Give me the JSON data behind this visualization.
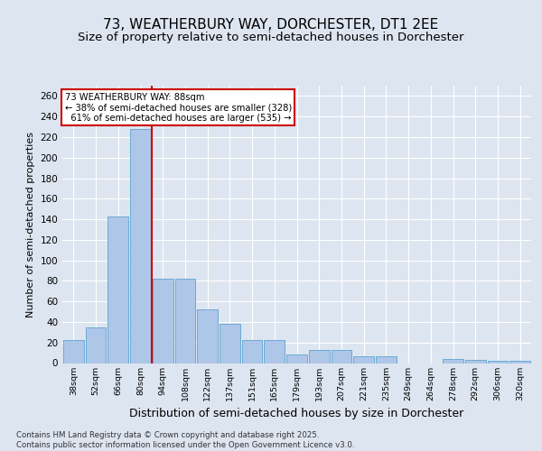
{
  "title": "73, WEATHERBURY WAY, DORCHESTER, DT1 2EE",
  "subtitle": "Size of property relative to semi-detached houses in Dorchester",
  "xlabel": "Distribution of semi-detached houses by size in Dorchester",
  "ylabel": "Number of semi-detached properties",
  "categories": [
    "38sqm",
    "52sqm",
    "66sqm",
    "80sqm",
    "94sqm",
    "108sqm",
    "122sqm",
    "137sqm",
    "151sqm",
    "165sqm",
    "179sqm",
    "193sqm",
    "207sqm",
    "221sqm",
    "235sqm",
    "249sqm",
    "264sqm",
    "278sqm",
    "292sqm",
    "306sqm",
    "320sqm"
  ],
  "values": [
    22,
    35,
    143,
    228,
    82,
    82,
    52,
    38,
    22,
    22,
    8,
    13,
    13,
    7,
    7,
    0,
    0,
    4,
    3,
    2,
    2
  ],
  "bar_color": "#aec6e8",
  "bar_edge_color": "#6aaad4",
  "vline_color": "#cc0000",
  "annotation_text": "73 WEATHERBURY WAY: 88sqm\n← 38% of semi-detached houses are smaller (328)\n  61% of semi-detached houses are larger (535) →",
  "annotation_box_color": "#ffffff",
  "annotation_box_edge": "#cc0000",
  "ylim": [
    0,
    270
  ],
  "yticks": [
    0,
    20,
    40,
    60,
    80,
    100,
    120,
    140,
    160,
    180,
    200,
    220,
    240,
    260
  ],
  "background_color": "#dde5f0",
  "plot_bg_color": "#dde5f0",
  "footer": "Contains HM Land Registry data © Crown copyright and database right 2025.\nContains public sector information licensed under the Open Government Licence v3.0.",
  "title_fontsize": 11,
  "subtitle_fontsize": 9.5,
  "xlabel_fontsize": 9,
  "ylabel_fontsize": 8,
  "grid_color": "#ffffff"
}
